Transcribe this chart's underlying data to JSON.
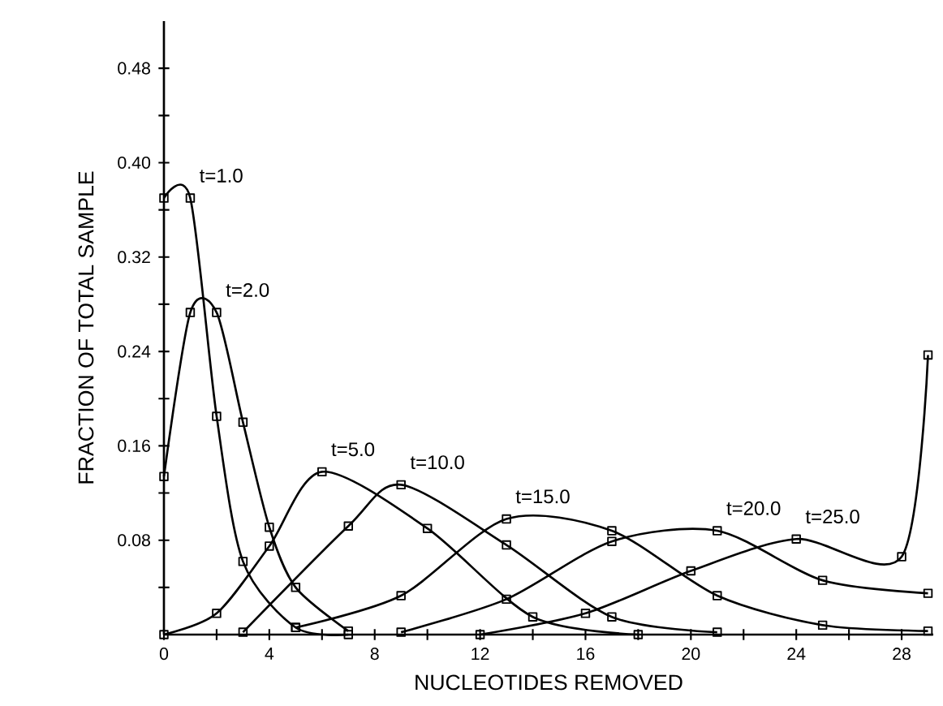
{
  "chart_data": {
    "type": "line",
    "xlabel": "NUCLEOTIDES   REMOVED",
    "ylabel": "FRACTION OF TOTAL SAMPLE",
    "xlim": [
      0,
      29.2
    ],
    "ylim": [
      0,
      0.52
    ],
    "xticks": [
      0,
      {
        "value": 2,
        "label": null
      },
      4,
      {
        "value": 6,
        "label": null
      },
      8,
      {
        "value": 10,
        "label": null
      },
      12,
      {
        "value": 14,
        "label": null
      },
      16,
      {
        "value": 18,
        "label": null
      },
      20,
      {
        "value": 22,
        "label": null
      },
      24,
      {
        "value": 26,
        "label": null
      },
      28
    ],
    "yticks": [
      {
        "value": 0.04,
        "label": null
      },
      {
        "value": 0.08,
        "label": "0.08"
      },
      {
        "value": 0.12,
        "label": null
      },
      {
        "value": 0.16,
        "label": "0.16"
      },
      {
        "value": 0.2,
        "label": null
      },
      {
        "value": 0.24,
        "label": "0.24"
      },
      {
        "value": 0.28,
        "label": null
      },
      {
        "value": 0.32,
        "label": "0.32"
      },
      {
        "value": 0.36,
        "label": null
      },
      {
        "value": 0.4,
        "label": "0.40"
      },
      {
        "value": 0.44,
        "label": null
      },
      {
        "value": 0.48,
        "label": "0.48"
      }
    ],
    "marker": "square",
    "line_style": "solid",
    "series": [
      {
        "name": "t=1.0",
        "color": "#000000",
        "x": [
          0,
          1,
          2,
          3,
          5,
          7
        ],
        "values": [
          0.37,
          0.37,
          0.185,
          0.062,
          0.006,
          0
        ]
      },
      {
        "name": "t=2.0",
        "color": "#000000",
        "x": [
          0,
          1,
          2,
          3,
          4,
          5,
          7
        ],
        "values": [
          0.134,
          0.273,
          0.273,
          0.18,
          0.091,
          0.04,
          0.003
        ]
      },
      {
        "name": "t=5.0",
        "color": "#000000",
        "x": [
          0,
          2,
          4,
          6,
          10,
          14,
          18
        ],
        "values": [
          0,
          0.018,
          0.075,
          0.138,
          0.09,
          0.015,
          0
        ]
      },
      {
        "name": "t=10.0",
        "color": "#000000",
        "x": [
          3,
          7,
          9,
          13,
          17,
          21
        ],
        "values": [
          0.002,
          0.092,
          0.127,
          0.076,
          0.015,
          0.002
        ]
      },
      {
        "name": "t=15.0",
        "color": "#000000",
        "x": [
          5,
          9,
          13,
          17,
          21,
          25,
          29
        ],
        "values": [
          0.006,
          0.033,
          0.098,
          0.088,
          0.033,
          0.008,
          0.003
        ]
      },
      {
        "name": "t=20.0",
        "color": "#000000",
        "x": [
          9,
          13,
          17,
          21,
          25,
          29
        ],
        "values": [
          0.002,
          0.03,
          0.079,
          0.088,
          0.046,
          0.035
        ]
      },
      {
        "name": "t=25.0",
        "color": "#000000",
        "x": [
          12,
          16,
          20,
          24,
          28,
          29
        ],
        "values": [
          0,
          0.018,
          0.054,
          0.081,
          0.066,
          0.237
        ]
      }
    ]
  }
}
